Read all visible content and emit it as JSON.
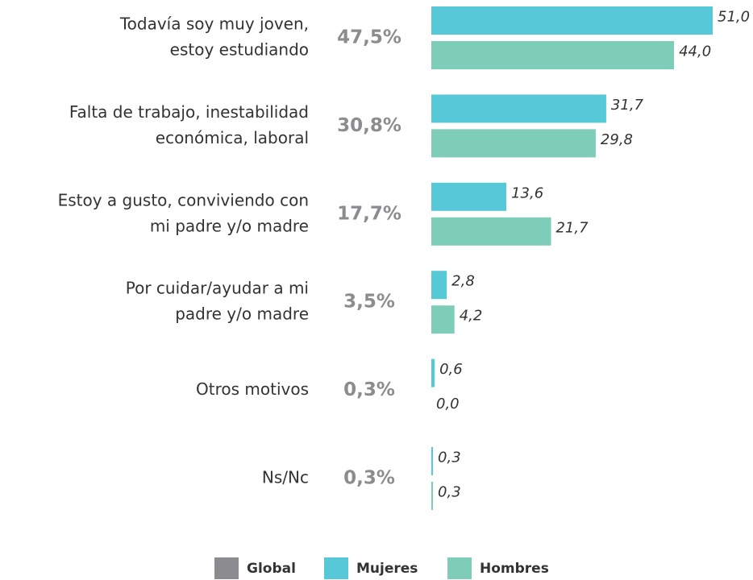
{
  "chart_data": {
    "type": "bar",
    "orientation": "horizontal",
    "categories": [
      [
        "Todavía soy muy joven,",
        "estoy estudiando"
      ],
      [
        "Falta de trabajo, inestabilidad",
        "económica, laboral"
      ],
      [
        "Estoy a gusto, conviviendo con",
        "mi padre y/o madre"
      ],
      [
        "Por cuidar/ayudar a mi",
        "padre y/o madre"
      ],
      [
        "Otros motivos"
      ],
      [
        "Ns/Nc"
      ]
    ],
    "series": [
      {
        "name": "Global",
        "color": "#8c8c90",
        "values": [
          47.5,
          30.8,
          17.7,
          3.5,
          0.3,
          0.3
        ],
        "value_labels": [
          "47,5%",
          "30,8%",
          "17,7%",
          "3,5%",
          "0,3%",
          "0,3%"
        ]
      },
      {
        "name": "Mujeres",
        "color": "#56c8d8",
        "values": [
          51.0,
          31.7,
          13.6,
          2.8,
          0.6,
          0.3
        ],
        "value_labels": [
          "51,0",
          "31,7",
          "13,6",
          "2,8",
          "0,6",
          "0,3"
        ]
      },
      {
        "name": "Hombres",
        "color": "#7ecdb8",
        "values": [
          44.0,
          29.8,
          21.7,
          4.2,
          0.0,
          0.3
        ],
        "value_labels": [
          "44,0",
          "29,8",
          "21,7",
          "4,2",
          "0,0",
          "0,3"
        ]
      }
    ]
  }
}
